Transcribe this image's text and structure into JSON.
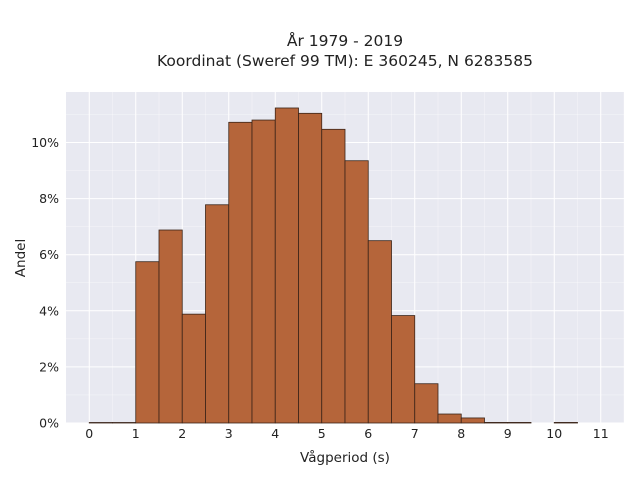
{
  "chart_data": {
    "type": "bar",
    "title_line1": "År 1979 - 2019",
    "title_line2": "Koordinat (Sweref 99 TM): E 360245, N 6283585",
    "xlabel": "Vågperiod (s)",
    "ylabel": "Andel",
    "bin_width": 0.5,
    "bins": [
      {
        "x": 0.0,
        "value": 0.0
      },
      {
        "x": 0.5,
        "value": 0.0
      },
      {
        "x": 1.0,
        "value": 5.75
      },
      {
        "x": 1.5,
        "value": 6.88
      },
      {
        "x": 2.0,
        "value": 3.88
      },
      {
        "x": 2.5,
        "value": 7.78
      },
      {
        "x": 3.0,
        "value": 10.72
      },
      {
        "x": 3.5,
        "value": 10.8
      },
      {
        "x": 4.0,
        "value": 11.23
      },
      {
        "x": 4.5,
        "value": 11.04
      },
      {
        "x": 5.0,
        "value": 10.47
      },
      {
        "x": 5.5,
        "value": 9.35
      },
      {
        "x": 6.0,
        "value": 6.5
      },
      {
        "x": 6.5,
        "value": 3.83
      },
      {
        "x": 7.0,
        "value": 1.4
      },
      {
        "x": 7.5,
        "value": 0.32
      },
      {
        "x": 8.0,
        "value": 0.18
      },
      {
        "x": 8.5,
        "value": 0.02
      },
      {
        "x": 9.0,
        "value": 0.02
      },
      {
        "x": 10.0,
        "value": 0.02
      }
    ],
    "x_ticks": [
      0,
      1,
      2,
      3,
      4,
      5,
      6,
      7,
      8,
      9,
      10,
      11
    ],
    "y_ticks": [
      0,
      2,
      4,
      6,
      8,
      10
    ],
    "y_tick_labels": [
      "0%",
      "2%",
      "4%",
      "6%",
      "8%",
      "10%"
    ],
    "xlim": [
      -0.5,
      11.5
    ],
    "ylim": [
      0,
      11.8
    ],
    "grid": true,
    "colors": {
      "bar_fill": "#b5653a",
      "bar_stroke": "#3a2418",
      "plot_bg": "#e8e9f1",
      "grid": "#ffffff"
    }
  }
}
